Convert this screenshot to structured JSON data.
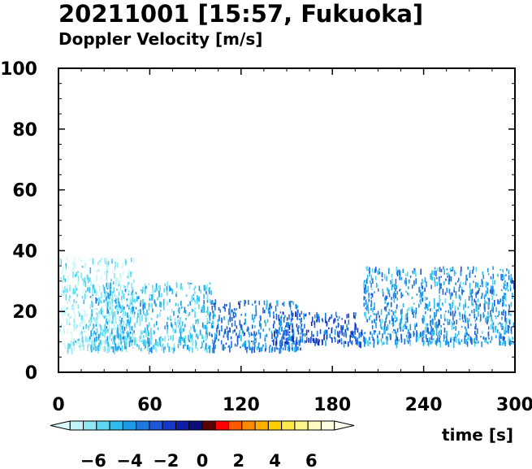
{
  "title": "20211001 [15:57, Fukuoka]",
  "subtitle": "Doppler Velocity [m/s]",
  "chart_data": {
    "type": "heatmap",
    "xlabel": "time [s]",
    "ylabel": "",
    "xlim": [
      0,
      300
    ],
    "ylim": [
      0,
      100
    ],
    "x_ticks": [
      0,
      60,
      120,
      180,
      240,
      300
    ],
    "y_ticks": [
      0,
      20,
      40,
      60,
      80,
      100
    ],
    "colorbar": {
      "range": [
        -8,
        8
      ],
      "tick_values": [
        -6,
        -4,
        -2,
        0,
        2,
        4,
        6
      ],
      "tick_labels": [
        "−6",
        "−4",
        "−2",
        "0",
        "2",
        "4",
        "6"
      ],
      "colors": [
        "#d8fafa",
        "#bff4f8",
        "#8ee8f4",
        "#5cd8f0",
        "#30bcee",
        "#1c9ae8",
        "#1f78e0",
        "#1c58d8",
        "#1438c8",
        "#0e1ea8",
        "#0a0f78",
        "#5a0000",
        "#ff0000",
        "#ff5a00",
        "#ff8a00",
        "#ffb000",
        "#ffd000",
        "#ffe84a",
        "#fff48a",
        "#fffac0",
        "#fffde0",
        "#ffffee"
      ]
    },
    "echo_regions": [
      {
        "t": [
          0,
          50
        ],
        "z": [
          8,
          38
        ],
        "v": -6.5,
        "note": "light cyan"
      },
      {
        "t": [
          20,
          100
        ],
        "z": [
          8,
          30
        ],
        "v": -5.0,
        "note": "cyan-blue"
      },
      {
        "t": [
          100,
          160
        ],
        "z": [
          8,
          24
        ],
        "v": -3.5,
        "note": "medium blue"
      },
      {
        "t": [
          140,
          200
        ],
        "z": [
          10,
          20
        ],
        "v": -2.5,
        "note": "dark blue"
      },
      {
        "t": [
          200,
          300
        ],
        "z": [
          10,
          35
        ],
        "v": -4.0,
        "note": "scattered blue"
      }
    ]
  }
}
